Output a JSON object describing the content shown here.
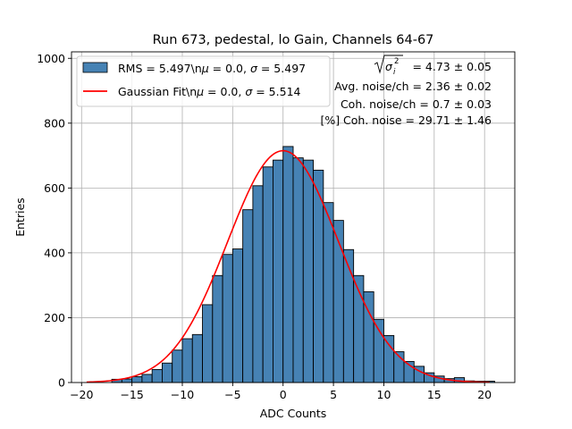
{
  "chart_data": {
    "type": "bar",
    "title": "Run 673, pedestal, lo Gain, Channels 64-67",
    "xlabel": "ADC Counts",
    "ylabel": "Entries",
    "xlim": [
      -21,
      23
    ],
    "ylim": [
      0,
      1020
    ],
    "xticks": [
      -20,
      -15,
      -10,
      -5,
      0,
      5,
      10,
      15,
      20
    ],
    "xtick_labels": [
      "−20",
      "−15",
      "−10",
      "−5",
      "0",
      "5",
      "10",
      "15",
      "20"
    ],
    "yticks": [
      0,
      200,
      400,
      600,
      800,
      1000
    ],
    "ytick_labels": [
      "0",
      "200",
      "400",
      "600",
      "800",
      "1000"
    ],
    "grid": true,
    "bar_color": "#4682b4",
    "bins": [
      {
        "x": -16.5,
        "y": 10
      },
      {
        "x": -15.5,
        "y": 11
      },
      {
        "x": -14.5,
        "y": 18
      },
      {
        "x": -13.5,
        "y": 25
      },
      {
        "x": -12.5,
        "y": 40
      },
      {
        "x": -11.5,
        "y": 60
      },
      {
        "x": -10.5,
        "y": 100
      },
      {
        "x": -9.5,
        "y": 135
      },
      {
        "x": -8.5,
        "y": 148
      },
      {
        "x": -7.5,
        "y": 240
      },
      {
        "x": -6.5,
        "y": 330
      },
      {
        "x": -5.5,
        "y": 395
      },
      {
        "x": -4.5,
        "y": 412
      },
      {
        "x": -3.5,
        "y": 533
      },
      {
        "x": -2.5,
        "y": 607
      },
      {
        "x": -1.5,
        "y": 665
      },
      {
        "x": -0.5,
        "y": 686
      },
      {
        "x": 0.5,
        "y": 728
      },
      {
        "x": 1.5,
        "y": 693
      },
      {
        "x": 2.5,
        "y": 686
      },
      {
        "x": 3.5,
        "y": 655
      },
      {
        "x": 4.5,
        "y": 555
      },
      {
        "x": 5.5,
        "y": 500
      },
      {
        "x": 6.5,
        "y": 410
      },
      {
        "x": 7.5,
        "y": 330
      },
      {
        "x": 8.5,
        "y": 280
      },
      {
        "x": 9.5,
        "y": 195
      },
      {
        "x": 10.5,
        "y": 145
      },
      {
        "x": 11.5,
        "y": 95
      },
      {
        "x": 12.5,
        "y": 65
      },
      {
        "x": 13.5,
        "y": 50
      },
      {
        "x": 14.5,
        "y": 30
      },
      {
        "x": 15.5,
        "y": 20
      },
      {
        "x": 16.5,
        "y": 12
      },
      {
        "x": 17.5,
        "y": 15
      },
      {
        "x": 18.5,
        "y": 5
      },
      {
        "x": 19.5,
        "y": 4
      },
      {
        "x": 20.5,
        "y": 4
      }
    ],
    "bin_width": 1,
    "fit": {
      "name": "Gaussian Fit",
      "color": "#ff0000",
      "mu": 0.0,
      "sigma": 5.514,
      "amplitude": 715,
      "x_range": [
        -19.5,
        20.5
      ]
    },
    "legend": {
      "position": "top-left",
      "entries": [
        {
          "kind": "patch",
          "label_pre": "RMS = 5.497\\n",
          "label_mid": " = 0.0, ",
          "label_post": " = 5.497",
          "mu_symbol": "μ",
          "sigma_symbol": "σ"
        },
        {
          "kind": "line",
          "label_pre": "Gaussian Fit\\n",
          "label_mid": " = 0.0, ",
          "label_post": " = 5.514",
          "mu_symbol": "μ",
          "sigma_symbol": "σ"
        }
      ]
    },
    "annotations": {
      "sqrt_sigma_base": "σ",
      "sqrt_sigma_sub": "i",
      "sqrt_sigma_sup": "2",
      "sqrt_value": " = 4.73 ± 0.05",
      "lines": [
        "Avg. noise/ch = 2.36 ± 0.02",
        "Coh. noise/ch = 0.7 ± 0.03",
        "[%] Coh. noise = 29.71 ± 1.46"
      ]
    }
  }
}
